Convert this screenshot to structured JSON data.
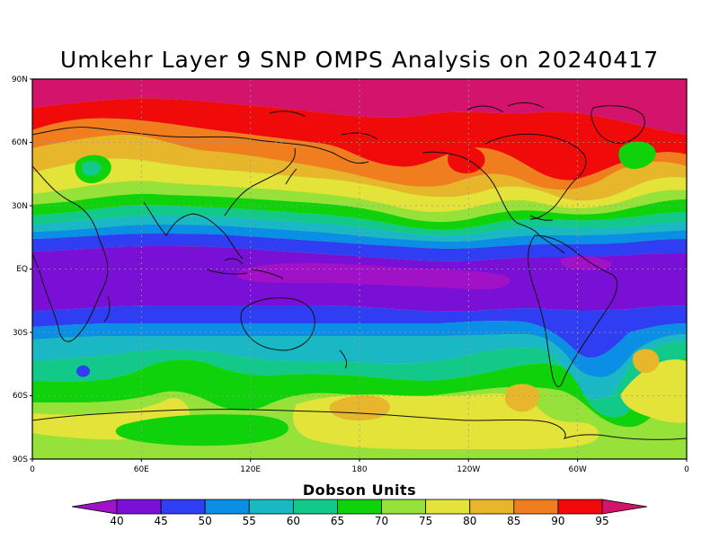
{
  "title": "Umkehr Layer 9 SNP OMPS Analysis on 20240417",
  "map": {
    "lat_labels": [
      "90N",
      "60N",
      "30N",
      "EQ",
      "30S",
      "60S",
      "90S"
    ],
    "lon_labels": [
      "0",
      "60E",
      "120E",
      "180",
      "120W",
      "60W",
      "0"
    ]
  },
  "colorbar": {
    "title": "Dobson Units",
    "levels": [
      "40",
      "45",
      "50",
      "55",
      "60",
      "65",
      "70",
      "75",
      "80",
      "85",
      "90",
      "95"
    ],
    "low_color": "#a011c8",
    "high_color": "#d4136c",
    "colors": [
      "#7a0fd6",
      "#2f3ef2",
      "#0a8ee6",
      "#19b8c4",
      "#13c98a",
      "#0fd20a",
      "#96e23a",
      "#e3e33a",
      "#e8b62a",
      "#f07e1f",
      "#f10a0a"
    ]
  },
  "palette": {
    "below_40": "#a011c8",
    "40": "#7a0fd6",
    "45": "#2f3ef2",
    "50": "#0a8ee6",
    "55": "#19b8c4",
    "60": "#13c98a",
    "65": "#0fd20a",
    "70": "#96e23a",
    "75": "#e3e33a",
    "80": "#e8b62a",
    "85": "#f07e1f",
    "90": "#f10a0a",
    "above_95": "#d4136c"
  }
}
